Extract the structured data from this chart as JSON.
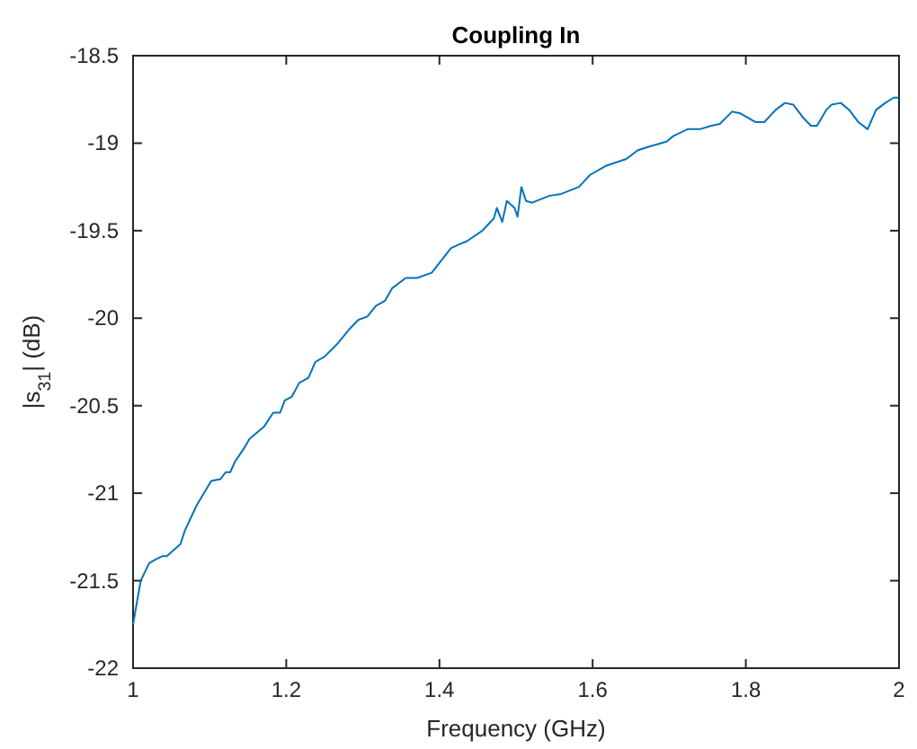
{
  "chart_data": {
    "type": "line",
    "title": "Coupling In",
    "xlabel": "Frequency (GHz)",
    "ylabel": "|s$_{31}$| (dB)",
    "xlim": [
      1,
      2
    ],
    "xticks": [
      1,
      1.2,
      1.4,
      1.6,
      1.8,
      2
    ],
    "ylim": [
      -22,
      -18.5
    ],
    "yticks": [
      -22,
      -21.5,
      -21,
      -20.5,
      -20,
      -19.5,
      -19,
      -18.5
    ],
    "grid": false,
    "series": [
      {
        "color": "#0072bd",
        "x": [
          1.0,
          1.002,
          1.01,
          1.021,
          1.029,
          1.038,
          1.044,
          1.062,
          1.068,
          1.083,
          1.102,
          1.114,
          1.121,
          1.127,
          1.133,
          1.144,
          1.152,
          1.171,
          1.183,
          1.192,
          1.198,
          1.207,
          1.217,
          1.229,
          1.238,
          1.25,
          1.266,
          1.283,
          1.294,
          1.306,
          1.317,
          1.329,
          1.338,
          1.356,
          1.371,
          1.39,
          1.415,
          1.425,
          1.436,
          1.456,
          1.471,
          1.475,
          1.482,
          1.488,
          1.498,
          1.502,
          1.507,
          1.513,
          1.521,
          1.544,
          1.559,
          1.582,
          1.597,
          1.617,
          1.644,
          1.659,
          1.674,
          1.697,
          1.705,
          1.724,
          1.74,
          1.755,
          1.766,
          1.782,
          1.793,
          1.813,
          1.824,
          1.839,
          1.851,
          1.862,
          1.874,
          1.885,
          1.893,
          1.905,
          1.912,
          1.924,
          1.935,
          1.947,
          1.959,
          1.97,
          1.982,
          1.993,
          2.0
        ],
        "values": [
          -21.75,
          -21.7,
          -21.5,
          -21.4,
          -21.38,
          -21.36,
          -21.36,
          -21.29,
          -21.21,
          -21.07,
          -20.93,
          -20.92,
          -20.88,
          -20.88,
          -20.82,
          -20.75,
          -20.69,
          -20.62,
          -20.54,
          -20.54,
          -20.47,
          -20.45,
          -20.37,
          -20.34,
          -20.25,
          -20.22,
          -20.15,
          -20.06,
          -20.01,
          -19.99,
          -19.93,
          -19.9,
          -19.83,
          -19.77,
          -19.77,
          -19.74,
          -19.6,
          -19.58,
          -19.56,
          -19.5,
          -19.43,
          -19.37,
          -19.45,
          -19.33,
          -19.37,
          -19.42,
          -19.25,
          -19.33,
          -19.34,
          -19.3,
          -19.29,
          -19.25,
          -19.18,
          -19.13,
          -19.09,
          -19.04,
          -19.02,
          -18.99,
          -18.96,
          -18.92,
          -18.92,
          -18.9,
          -18.89,
          -18.82,
          -18.83,
          -18.88,
          -18.88,
          -18.81,
          -18.77,
          -18.78,
          -18.85,
          -18.9,
          -18.9,
          -18.81,
          -18.78,
          -18.77,
          -18.81,
          -18.88,
          -18.92,
          -18.81,
          -18.77,
          -18.74,
          -18.74
        ]
      }
    ]
  }
}
